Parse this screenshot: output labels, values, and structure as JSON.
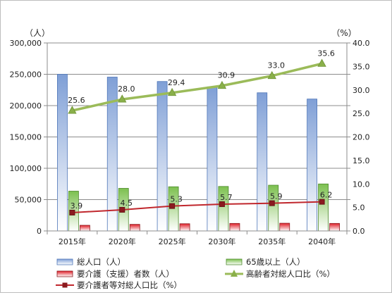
{
  "chart_data": {
    "type": "bar",
    "categories": [
      "2015年",
      "2020年",
      "2025年",
      "2030年",
      "2035年",
      "2040年"
    ],
    "y_left": {
      "unit_label": "（人）",
      "range": [
        0,
        300000
      ],
      "ticks": [
        "0",
        "50,000",
        "100,000",
        "150,000",
        "200,000",
        "250,000",
        "300,000"
      ]
    },
    "y_right": {
      "unit_label": "（%）",
      "range": [
        0,
        40
      ],
      "ticks": [
        "0.0",
        "5.0",
        "10.0",
        "15.0",
        "20.0",
        "25.0",
        "30.0",
        "35.0",
        "40.0"
      ]
    },
    "series": [
      {
        "name": "総人口（人）",
        "type": "bar",
        "axis": "left",
        "color": "#9dbbe6",
        "values": [
          250000,
          245500,
          238500,
          230000,
          220500,
          210500
        ]
      },
      {
        "name": "65歳以上（人）",
        "type": "bar",
        "axis": "left",
        "color": "#8fca6a",
        "values": [
          63500,
          68000,
          70500,
          71000,
          73000,
          75000
        ]
      },
      {
        "name": "要介護（支援）者数（人）",
        "type": "bar",
        "axis": "left",
        "color": "#e8343c",
        "values": [
          9000,
          10500,
          11500,
          12000,
          12300,
          12000
        ]
      },
      {
        "name": "高齢者対総人口比（%）",
        "type": "line",
        "axis": "right",
        "color": "#9bbb59",
        "marker": "triangle",
        "values": [
          25.6,
          28.0,
          29.4,
          30.9,
          33.0,
          35.6
        ],
        "labels": [
          "25.6",
          "28.0",
          "29.4",
          "30.9",
          "33.0",
          "35.6"
        ]
      },
      {
        "name": "要介護者等対総人口比（%）",
        "type": "line",
        "axis": "right",
        "color": "#c0272d",
        "marker": "square",
        "values": [
          3.9,
          4.5,
          5.3,
          5.7,
          5.9,
          6.2
        ],
        "labels": [
          "3.9",
          "4.5",
          "5.3",
          "5.7",
          "5.9",
          "6.2"
        ]
      }
    ],
    "legend_position": "bottom",
    "grid": "horizontal"
  }
}
